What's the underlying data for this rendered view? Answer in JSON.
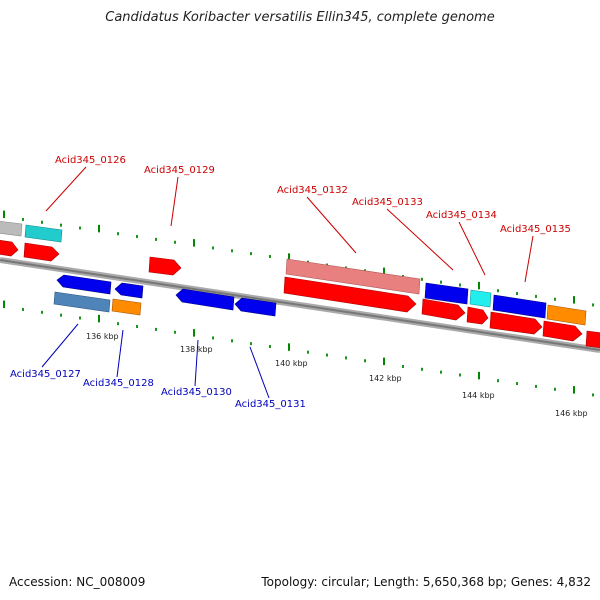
{
  "title": "Candidatus Koribacter versatilis Ellin345, complete genome",
  "footer": {
    "accession": "Accession: NC_008009",
    "summary": "Topology: circular; Length: 5,650,368 bp; Genes: 4,832"
  },
  "ruler": [
    "136 kbp",
    "138 kbp",
    "140 kbp",
    "142 kbp",
    "144 kbp",
    "146 kbp"
  ],
  "gene_labels": {
    "forward": [
      "Acid345_0126",
      "Acid345_0129",
      "Acid345_0132",
      "Acid345_0133",
      "Acid345_0134",
      "Acid345_0135"
    ],
    "reverse": [
      "Acid345_0127",
      "Acid345_0128",
      "Acid345_0130",
      "Acid345_0131"
    ]
  },
  "colors": {
    "forward_label": "#cc0000",
    "reverse_label": "#0000bb",
    "cds_forward": "#ff0000",
    "cds_reverse": "#0000ee",
    "gene_pink": "#e88080",
    "gene_cyan": "#22cccc",
    "gene_orange": "#ff8c00",
    "gene_steel": "#4f84b8",
    "gene_grey": "#bbbbbb",
    "tick_green": "#008800",
    "backbone": "#888888"
  }
}
